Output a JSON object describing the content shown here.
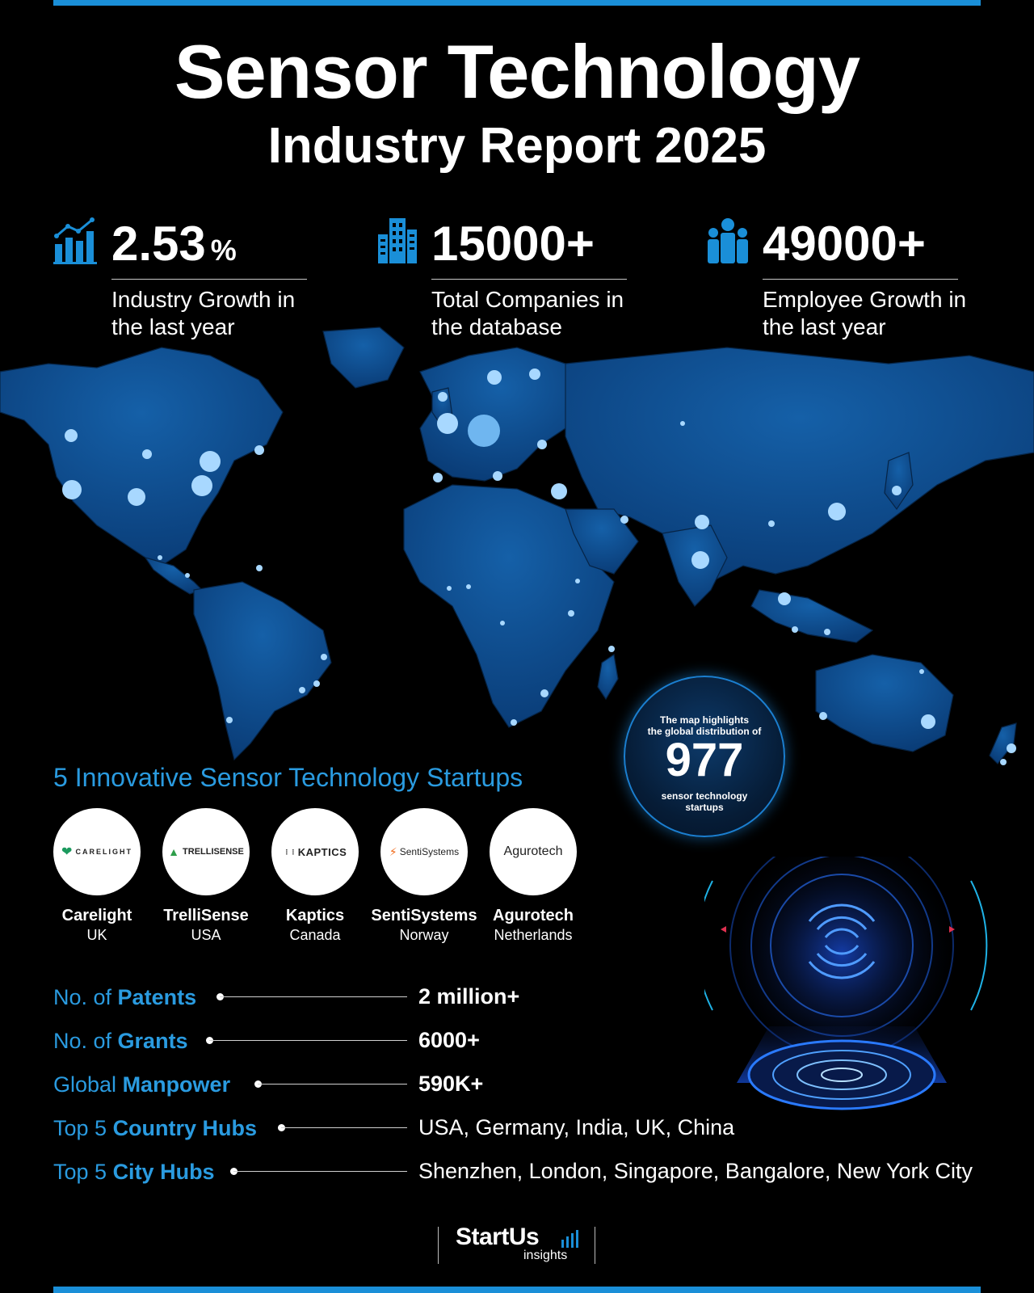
{
  "header": {
    "title": "Sensor Technology",
    "subtitle": "Industry Report 2025"
  },
  "stats": [
    {
      "icon": "bar-chart-growth-icon",
      "value": "2.53",
      "unit": "%",
      "desc_line1": "Industry Growth in",
      "desc_line2": "the last year"
    },
    {
      "icon": "buildings-icon",
      "value": "15000+",
      "unit": "",
      "desc_line1": "Total Companies in",
      "desc_line2": "the database"
    },
    {
      "icon": "people-icon",
      "value": "49000+",
      "unit": "",
      "desc_line1": "Employee Growth in",
      "desc_line2": "the last year"
    }
  ],
  "map_badge": {
    "line1": "The map highlights",
    "line2": "the global distribution of",
    "number": "977",
    "line3": "sensor technology",
    "line4": "startups"
  },
  "startups_heading": "5 Innovative Sensor Technology Startups",
  "startups": [
    {
      "name": "Carelight",
      "country": "UK",
      "logo_text": "CARELIGHT"
    },
    {
      "name": "TrelliSense",
      "country": "USA",
      "logo_text": "TRELLISENSE"
    },
    {
      "name": "Kaptics",
      "country": "Canada",
      "logo_text": "KAPTICS"
    },
    {
      "name": "SentiSystems",
      "country": "Norway",
      "logo_text": "SentiSystems"
    },
    {
      "name": "Agurotech",
      "country": "Netherlands",
      "logo_text": "Agurotech"
    }
  ],
  "facts": [
    {
      "prefix": "No. of ",
      "highlight": "Patents",
      "value": "2 million+"
    },
    {
      "prefix": "No. of ",
      "highlight": "Grants",
      "value": "6000+"
    },
    {
      "prefix": "Global ",
      "highlight": "Manpower",
      "value": "590K+"
    },
    {
      "prefix": "Top 5 ",
      "highlight": "Country Hubs",
      "value": "USA, Germany, India, UK, China"
    },
    {
      "prefix": "Top 5 ",
      "highlight": "City Hubs",
      "value": "Shenzhen, London, Singapore, Bangalore, New York City"
    }
  ],
  "footer": {
    "brand": "StartUs",
    "brand_sub": "insights"
  },
  "colors": {
    "accent": "#1a8fd8",
    "heading_blue": "#2a9be0",
    "map_land": "#0d4a8c",
    "map_dot": "#a8d8ff",
    "background": "#000000"
  }
}
